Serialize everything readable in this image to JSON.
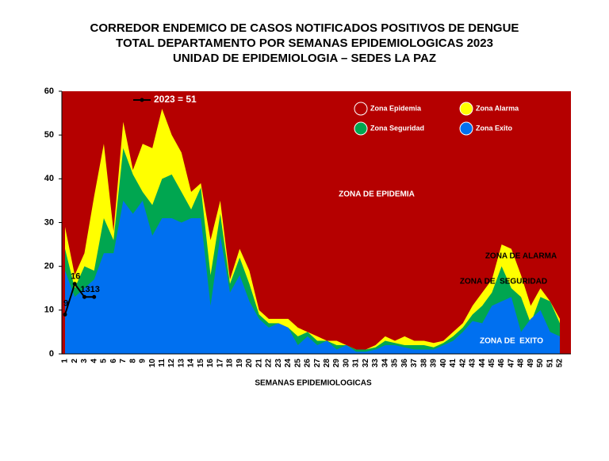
{
  "chart_data": {
    "type": "area",
    "title": [
      "CORREDOR ENDEMICO DE CASOS NOTIFICADOS POSITIVOS DE DENGUE",
      "TOTAL DEPARTAMENTO POR SEMANAS EPIDEMIOLOGICAS 2023",
      "UNIDAD DE EPIDEMIOLOGIA – SEDES LA PAZ"
    ],
    "x_label": "SEMANAS EPIDEMIOLOGICAS",
    "categories": [
      1,
      2,
      3,
      4,
      5,
      6,
      7,
      8,
      9,
      10,
      11,
      12,
      13,
      14,
      15,
      16,
      17,
      18,
      19,
      20,
      21,
      22,
      23,
      24,
      25,
      26,
      27,
      28,
      29,
      30,
      31,
      32,
      33,
      34,
      35,
      36,
      37,
      38,
      39,
      40,
      41,
      42,
      43,
      44,
      45,
      46,
      47,
      48,
      49,
      50,
      51,
      52
    ],
    "ylim": [
      0,
      60
    ],
    "yticks": [
      0,
      10,
      20,
      30,
      40,
      50,
      60
    ],
    "background": {
      "name": "Zona Epidemia",
      "color": "#b50000"
    },
    "series": [
      {
        "name": "Zona Alarma",
        "color": "#ffff00",
        "values": [
          29,
          18,
          23,
          36,
          48,
          28,
          53,
          42,
          48,
          47,
          56,
          50,
          46,
          37,
          39,
          26,
          35,
          17,
          24,
          19,
          10,
          8,
          8,
          8,
          6,
          5,
          4,
          3,
          3,
          2,
          1,
          1,
          2,
          4,
          3,
          4,
          3,
          3,
          2.5,
          3,
          5,
          7,
          11,
          14,
          17,
          25,
          24,
          18,
          11,
          15,
          12,
          8
        ]
      },
      {
        "name": "Zona Seguridad",
        "color": "#00a650",
        "values": [
          24,
          15,
          20,
          19,
          31,
          26,
          47,
          41,
          37,
          34,
          40,
          41,
          37,
          33,
          38,
          18,
          32,
          16,
          22,
          16,
          9,
          7,
          7,
          6,
          4,
          5,
          3,
          3,
          2,
          2,
          1,
          1,
          1.5,
          3,
          2.5,
          2,
          2,
          2,
          1.5,
          2.5,
          4,
          6,
          9,
          11,
          14,
          20,
          15,
          13,
          7,
          13,
          12,
          7
        ]
      },
      {
        "name": "Zona Exito",
        "color": "#0070f0",
        "values": [
          19,
          13,
          15,
          17,
          23,
          23,
          35,
          32,
          35,
          27,
          31,
          31,
          30,
          31,
          31,
          11,
          27,
          14,
          18,
          12,
          8,
          6,
          7,
          6,
          2,
          4,
          2,
          3,
          1,
          2,
          0.5,
          0.5,
          1,
          2,
          2,
          1.5,
          1,
          1,
          1,
          2,
          3,
          5,
          7.5,
          7,
          11,
          12,
          13,
          5,
          8,
          10,
          5,
          4
        ]
      },
      {
        "name": "2023 = 51",
        "color": "#000000",
        "type": "line",
        "values": [
          9,
          16,
          13,
          13,
          null,
          null,
          null,
          null,
          null,
          null,
          null,
          null,
          null,
          null,
          null,
          null,
          null,
          null,
          null,
          null,
          null,
          null,
          null,
          null,
          null,
          null,
          null,
          null,
          null,
          null,
          null,
          null,
          null,
          null,
          null,
          null,
          null,
          null,
          null,
          null,
          null,
          null,
          null,
          null,
          null,
          null,
          null,
          null,
          null,
          null,
          null,
          null
        ]
      }
    ],
    "annotations": [
      "ZONA DE EPIDEMIA",
      "ZONA DE ALARMA",
      "ZONA DE  SEGURIDAD",
      "ZONA DE  EXITO"
    ]
  }
}
